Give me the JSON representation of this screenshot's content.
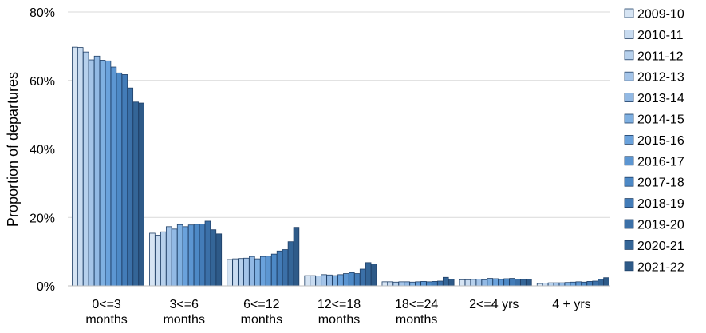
{
  "chart_data": {
    "type": "bar",
    "title": "",
    "xlabel": "",
    "ylabel": "Proportion of departures",
    "ylim": [
      0,
      80
    ],
    "y_ticks": [
      "0%",
      "20%",
      "40%",
      "60%",
      "80%"
    ],
    "y_tick_values": [
      0,
      20,
      40,
      60,
      80
    ],
    "grid": true,
    "legend_position": "right",
    "categories": [
      [
        "0<=3",
        "months"
      ],
      [
        "3<=6",
        "months"
      ],
      [
        "6<=12",
        "months"
      ],
      [
        "12<=18",
        "months"
      ],
      [
        "18<=24",
        "months"
      ],
      [
        "2<=4 yrs"
      ],
      [
        "4 + yrs"
      ]
    ],
    "series": [
      {
        "name": "2009-10",
        "color": "#d6e4f3",
        "values": [
          69.7,
          15.4,
          7.7,
          3.0,
          1.2,
          1.8,
          0.7
        ]
      },
      {
        "name": "2010-11",
        "color": "#c8dbf0",
        "values": [
          69.6,
          14.8,
          7.9,
          3.0,
          1.2,
          1.8,
          0.8
        ]
      },
      {
        "name": "2011-12",
        "color": "#b6d0ec",
        "values": [
          68.3,
          15.8,
          8.0,
          2.9,
          1.1,
          1.9,
          0.9
        ]
      },
      {
        "name": "2012-13",
        "color": "#a4c4e8",
        "values": [
          66.0,
          17.3,
          8.1,
          3.3,
          1.2,
          2.0,
          0.9
        ]
      },
      {
        "name": "2013-14",
        "color": "#92b9e4",
        "values": [
          67.1,
          16.6,
          8.6,
          3.2,
          1.2,
          1.8,
          0.9
        ]
      },
      {
        "name": "2014-15",
        "color": "#7fb0e1",
        "values": [
          65.9,
          17.9,
          7.9,
          3.0,
          1.1,
          2.2,
          1.0
        ]
      },
      {
        "name": "2015-16",
        "color": "#6aa2dc",
        "values": [
          65.7,
          17.3,
          8.6,
          3.3,
          1.2,
          2.1,
          1.1
        ]
      },
      {
        "name": "2016-17",
        "color": "#5c96d2",
        "values": [
          63.9,
          17.8,
          8.7,
          3.6,
          1.3,
          1.9,
          1.2
        ]
      },
      {
        "name": "2017-18",
        "color": "#4d89c6",
        "values": [
          62.2,
          18.0,
          9.3,
          3.9,
          1.2,
          2.1,
          1.1
        ]
      },
      {
        "name": "2018-19",
        "color": "#437cb8",
        "values": [
          61.7,
          18.1,
          10.2,
          3.6,
          1.3,
          2.2,
          1.3
        ]
      },
      {
        "name": "2019-20",
        "color": "#3b70a8",
        "values": [
          57.8,
          18.9,
          10.6,
          4.9,
          1.4,
          2.0,
          1.4
        ]
      },
      {
        "name": "2020-21",
        "color": "#346597",
        "values": [
          53.7,
          16.4,
          12.9,
          6.8,
          2.5,
          1.9,
          2.0
        ]
      },
      {
        "name": "2021-22",
        "color": "#2e5a88",
        "values": [
          53.4,
          15.2,
          17.1,
          6.4,
          2.0,
          2.0,
          2.4
        ]
      }
    ]
  }
}
